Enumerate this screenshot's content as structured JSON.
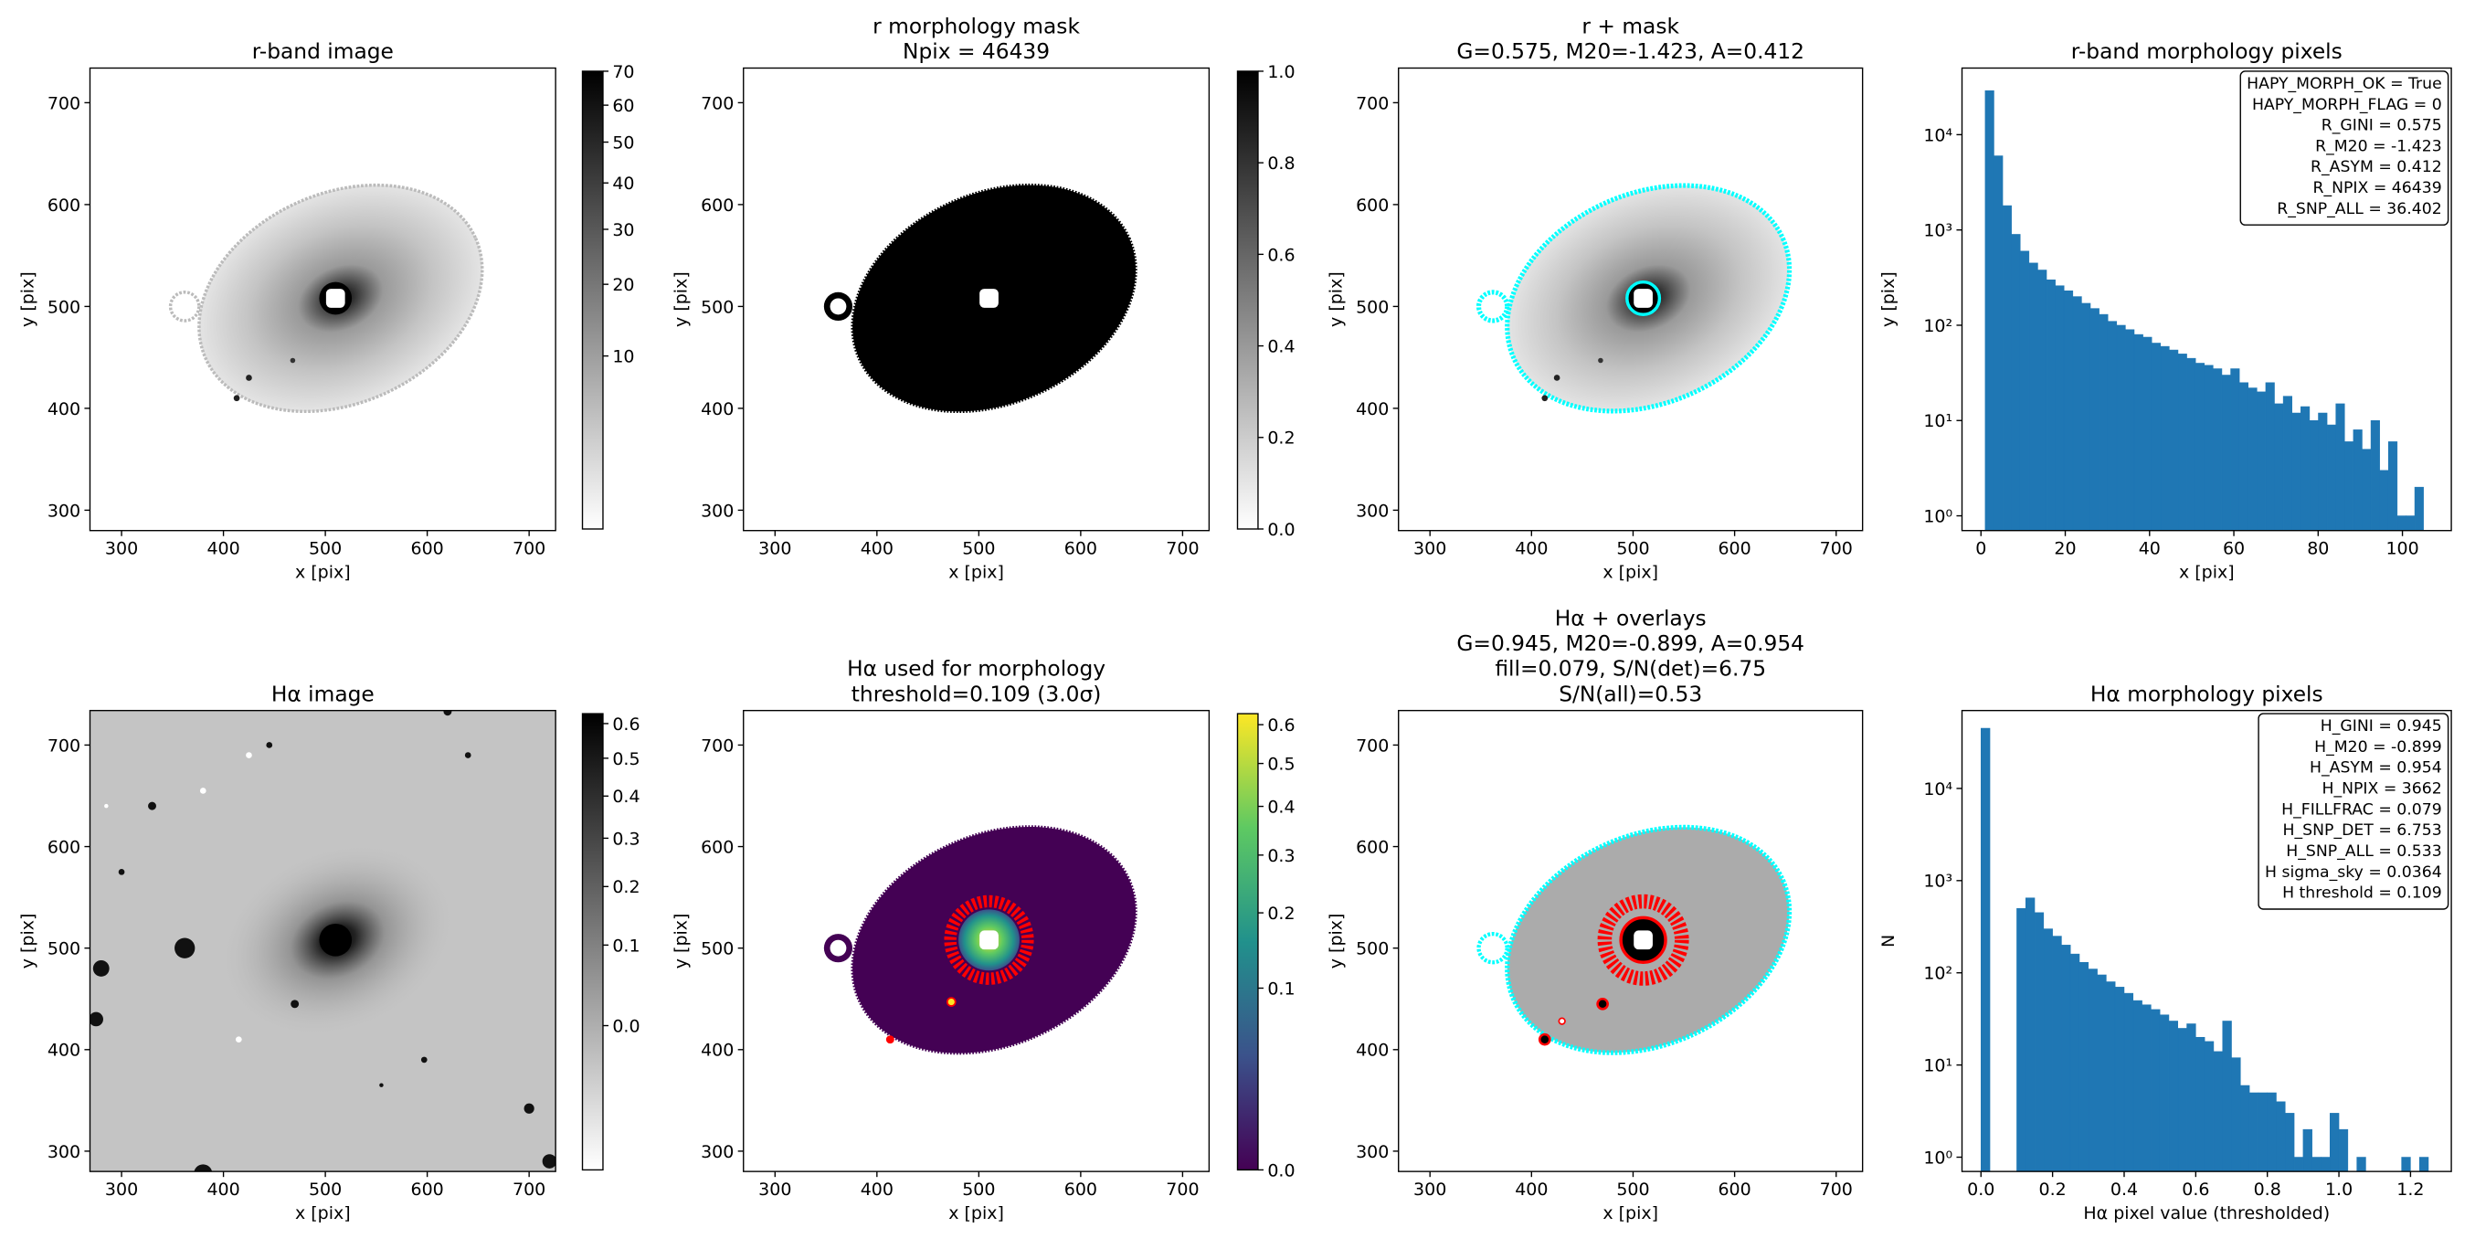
{
  "chart_data": [
    {
      "type": "image",
      "title": [
        "r-band image"
      ],
      "xlabel": "x [pix]",
      "ylabel": "y [pix]",
      "xlim": [
        269,
        726
      ],
      "ylim": [
        280,
        734
      ],
      "xticks": [
        300,
        400,
        500,
        600,
        700
      ],
      "yticks": [
        300,
        400,
        500,
        600,
        700
      ],
      "cmap": "gray_r",
      "colorbar": {
        "scale": "sqrt",
        "lim": [
          0,
          70
        ],
        "ticks": [
          10,
          20,
          30,
          40,
          50,
          60,
          70
        ]
      }
    },
    {
      "type": "image",
      "title": [
        "r morphology mask",
        "Npix = 46439"
      ],
      "xlabel": "x [pix]",
      "ylabel": "y [pix]",
      "xlim": [
        269,
        726
      ],
      "ylim": [
        280,
        734
      ],
      "xticks": [
        300,
        400,
        500,
        600,
        700
      ],
      "yticks": [
        300,
        400,
        500,
        600,
        700
      ],
      "cmap": "gray_r",
      "colorbar": {
        "scale": "linear",
        "lim": [
          0,
          1
        ],
        "ticks": [
          {
            "value": 0,
            "label": "0.0"
          },
          0.2,
          0.4,
          0.6,
          0.8,
          {
            "value": 1,
            "label": "1.0"
          }
        ]
      }
    },
    {
      "type": "image",
      "title": [
        "r + mask",
        "G=0.575, M20=-1.423, A=0.412"
      ],
      "xlabel": "x [pix]",
      "ylabel": "y [pix]",
      "xlim": [
        269,
        726
      ],
      "ylim": [
        280,
        734
      ],
      "xticks": [
        300,
        400,
        500,
        600,
        700
      ],
      "yticks": [
        300,
        400,
        500,
        600,
        700
      ],
      "cmap": "gray_r"
    },
    {
      "type": "histogram",
      "title": [
        "r-band morphology pixels"
      ],
      "xlabel": "x [pix]",
      "ylabel": "y [pix]",
      "color": "#1f77b4",
      "yscale": "log",
      "bins": [
        1,
        3.08,
        5.16,
        7.24,
        9.32,
        11.4,
        13.48,
        15.56,
        17.64,
        19.72,
        21.8,
        23.88,
        25.96,
        28.04,
        30.12,
        32.2,
        34.28,
        36.36,
        38.44,
        40.52,
        42.6,
        44.68,
        46.76,
        48.84,
        50.92,
        53,
        55.08,
        57.16,
        59.24,
        61.32,
        63.4,
        65.48,
        67.56,
        69.64,
        71.72,
        73.8,
        75.88,
        77.96,
        80.04,
        82.12,
        84.2,
        86.28,
        88.36,
        90.44,
        92.52,
        94.6,
        96.68,
        98.76,
        100.84,
        102.92,
        105
      ],
      "values": [
        29000,
        6000,
        1800,
        900,
        600,
        450,
        380,
        300,
        260,
        230,
        200,
        170,
        150,
        130,
        110,
        100,
        90,
        80,
        75,
        65,
        60,
        55,
        50,
        45,
        40,
        38,
        35,
        30,
        35,
        25,
        22,
        20,
        25,
        15,
        18,
        12,
        14,
        10,
        12,
        9,
        15,
        6,
        8,
        5,
        10,
        3,
        6,
        1,
        1,
        2
      ],
      "xlim": [
        -4.5,
        111.6
      ],
      "ylim": [
        0.7,
        50000
      ],
      "xticks": [
        0,
        20,
        40,
        60,
        80,
        100
      ],
      "yticks": [
        {
          "value": 1,
          "label": "10⁰"
        },
        {
          "value": 10,
          "label": "10¹"
        },
        {
          "value": 100,
          "label": "10²"
        },
        {
          "value": 1000,
          "label": "10³"
        },
        {
          "value": 10000,
          "label": "10⁴"
        }
      ],
      "annotation": [
        "HAPY_MORPH_OK = True",
        "HAPY_MORPH_FLAG = 0",
        "R_GINI = 0.575",
        "R_M20 = -1.423",
        "R_ASYM = 0.412",
        "R_NPIX = 46439",
        "R_SNP_ALL = 36.402"
      ],
      "annotation_corner": "upper right"
    },
    {
      "type": "image",
      "title": [
        "Hα image"
      ],
      "xlabel": "x [pix]",
      "ylabel": "y [pix]",
      "xlim": [
        269,
        726
      ],
      "ylim": [
        280,
        734
      ],
      "xticks": [
        300,
        400,
        500,
        600,
        700
      ],
      "yticks": [
        300,
        400,
        500,
        600,
        700
      ],
      "cmap": "gray_r",
      "colorbar": {
        "scale": "sqrt",
        "lim": [
          -0.07,
          0.63
        ],
        "ticks": [
          {
            "value": 0,
            "label": "0.0"
          },
          0.1,
          0.2,
          0.3,
          0.4,
          0.5,
          0.6
        ]
      }
    },
    {
      "type": "image",
      "title": [
        "Hα used for morphology",
        "threshold=0.109 (3.0σ)"
      ],
      "xlabel": "x [pix]",
      "ylabel": "y [pix]",
      "xlim": [
        269,
        726
      ],
      "ylim": [
        280,
        734
      ],
      "xticks": [
        300,
        400,
        500,
        600,
        700
      ],
      "yticks": [
        300,
        400,
        500,
        600,
        700
      ],
      "cmap": "viridis",
      "colorbar": {
        "scale": "sqrt",
        "lim": [
          0,
          0.63
        ],
        "ticks": [
          {
            "value": 0,
            "label": "0.0"
          },
          0.1,
          0.2,
          0.3,
          0.4,
          0.5,
          0.6
        ]
      }
    },
    {
      "type": "image",
      "title": [
        "Hα + overlays",
        "G=0.945, M20=-0.899, A=0.954",
        "fill=0.079, S/N(det)=6.75",
        "S/N(all)=0.53"
      ],
      "xlabel": "x [pix]",
      "ylabel": "y [pix]",
      "xlim": [
        269,
        726
      ],
      "ylim": [
        280,
        734
      ],
      "xticks": [
        300,
        400,
        500,
        600,
        700
      ],
      "yticks": [
        300,
        400,
        500,
        600,
        700
      ],
      "cmap": "gray_r"
    },
    {
      "type": "histogram",
      "title": [
        "Hα morphology pixels"
      ],
      "xlabel": "Hα pixel value (thresholded)",
      "ylabel": "N",
      "color": "#1f77b4",
      "yscale": "log",
      "bins": [
        0,
        0.025,
        0.05,
        0.075,
        0.1,
        0.125,
        0.15,
        0.175,
        0.2,
        0.225,
        0.25,
        0.275,
        0.3,
        0.325,
        0.35,
        0.375,
        0.4,
        0.425,
        0.45,
        0.475,
        0.5,
        0.525,
        0.55,
        0.575,
        0.6,
        0.625,
        0.65,
        0.675,
        0.7,
        0.725,
        0.75,
        0.775,
        0.8,
        0.825,
        0.85,
        0.875,
        0.9,
        0.925,
        0.95,
        0.975,
        1,
        1.025,
        1.05,
        1.075,
        1.1,
        1.125,
        1.15,
        1.175,
        1.2,
        1.225,
        1.25
      ],
      "values": [
        45000,
        0,
        0,
        0,
        500,
        650,
        450,
        300,
        250,
        200,
        160,
        130,
        110,
        95,
        80,
        70,
        60,
        50,
        45,
        40,
        35,
        30,
        25,
        28,
        20,
        18,
        14,
        30,
        12,
        6,
        5,
        5,
        5,
        4,
        3,
        1,
        2,
        1,
        1,
        3,
        2,
        0,
        1,
        0,
        0,
        0,
        0,
        1,
        0,
        1
      ],
      "xlim": [
        -0.053,
        1.314
      ],
      "ylim": [
        0.7,
        70000
      ],
      "xticks": [
        {
          "value": 0,
          "label": "0.0"
        },
        0.2,
        0.4,
        0.6,
        0.8,
        {
          "value": 1,
          "label": "1.0"
        },
        1.2
      ],
      "yticks": [
        {
          "value": 1,
          "label": "10⁰"
        },
        {
          "value": 10,
          "label": "10¹"
        },
        {
          "value": 100,
          "label": "10²"
        },
        {
          "value": 1000,
          "label": "10³"
        },
        {
          "value": 10000,
          "label": "10⁴"
        }
      ],
      "annotation": [
        "H_GINI = 0.945",
        "H_M20 = -0.899",
        "H_ASYM = 0.954",
        "H_NPIX = 3662",
        "H_FILLFRAC = 0.079",
        "H_SNP_DET = 6.753",
        "H_SNP_ALL = 0.533",
        "H sigma_sky = 0.0364",
        "H threshold = 0.109"
      ],
      "annotation_corner": "upper right"
    }
  ]
}
